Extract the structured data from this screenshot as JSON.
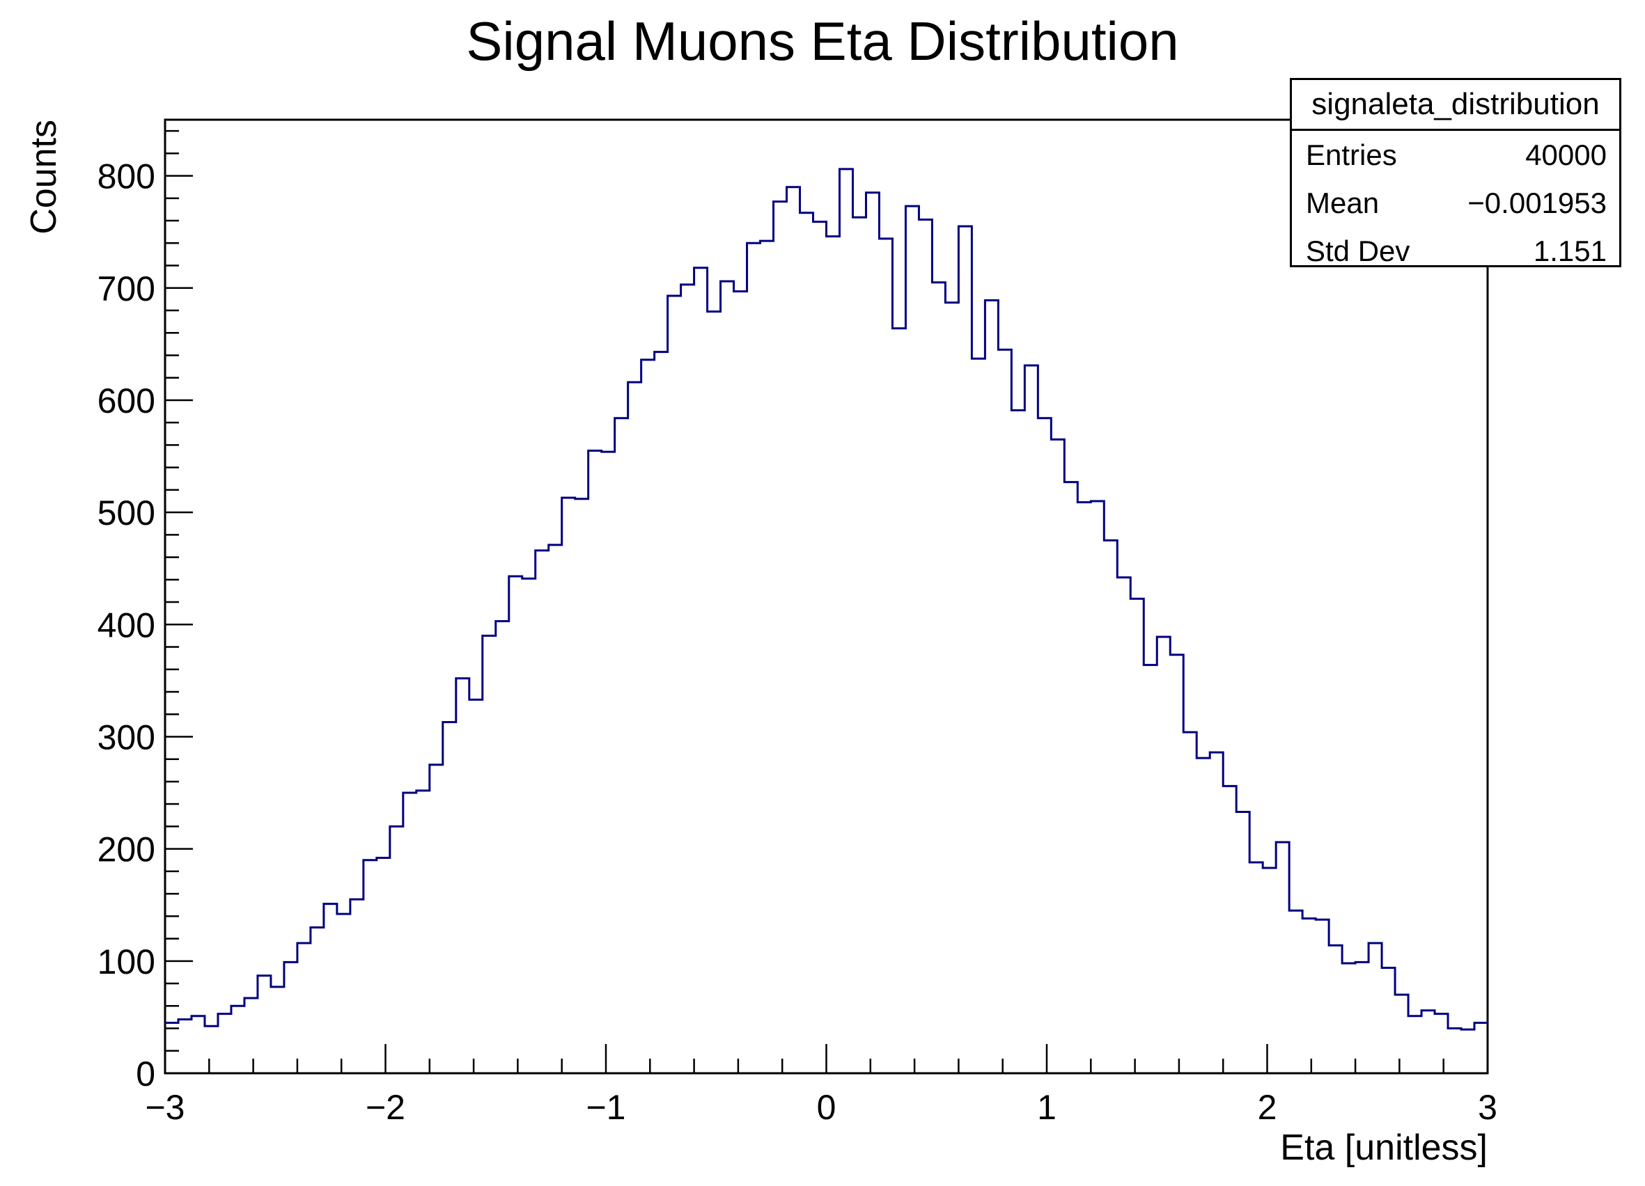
{
  "chart_data": {
    "type": "bar",
    "subtype": "step-histogram",
    "title": "Signal Muons Eta Distribution",
    "xlabel": "Eta [unitless]",
    "ylabel": "Counts",
    "xlim": [
      -3,
      3
    ],
    "ylim": [
      0,
      850
    ],
    "x_ticks": [
      "−3",
      "−2",
      "−1",
      "0",
      "1",
      "2",
      "3"
    ],
    "y_ticks": [
      "0",
      "100",
      "200",
      "300",
      "400",
      "500",
      "600",
      "700",
      "800"
    ],
    "bin_range": [
      -3,
      3
    ],
    "line_color": "#000080",
    "values": [
      45,
      48,
      51,
      42,
      53,
      60,
      67,
      87,
      77,
      99,
      116,
      130,
      151,
      142,
      155,
      190,
      192,
      220,
      250,
      252,
      275,
      313,
      352,
      333,
      390,
      403,
      443,
      441,
      466,
      471,
      513,
      512,
      555,
      554,
      584,
      616,
      636,
      643,
      693,
      703,
      718,
      679,
      706,
      697,
      740,
      742,
      777,
      790,
      767,
      759,
      746,
      806,
      763,
      785,
      744,
      664,
      773,
      761,
      705,
      687,
      755,
      637,
      689,
      645,
      591,
      631,
      584,
      565,
      527,
      509,
      510,
      475,
      442,
      423,
      364,
      389,
      373,
      304,
      281,
      286,
      256,
      233,
      188,
      183,
      206,
      145,
      138,
      137,
      114,
      98,
      99,
      116,
      94,
      70,
      51,
      56,
      53,
      40,
      39,
      45
    ],
    "stats_box": {
      "name": "signaleta_distribution",
      "entries_label": "Entries",
      "entries": "40000",
      "mean_label": "Mean",
      "mean": "−0.001953",
      "std_label": "Std Dev",
      "std": "1.151"
    }
  }
}
